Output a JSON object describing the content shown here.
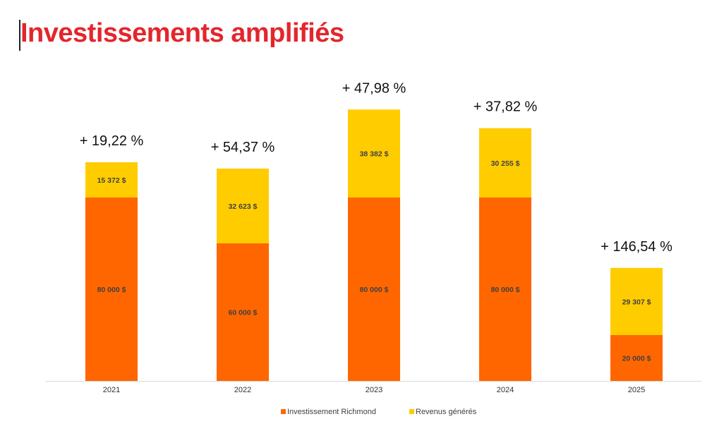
{
  "page": {
    "title": "Investissements amplifiés"
  },
  "colors": {
    "title": "#e3262d",
    "investment": "#ff6600",
    "revenue": "#ffcc00",
    "axis": "#d9d9d9"
  },
  "chart_data": {
    "type": "bar",
    "stacked": true,
    "title": "",
    "xlabel": "",
    "ylabel": "",
    "ylim": [
      0,
      120000
    ],
    "categories": [
      "2021",
      "2022",
      "2023",
      "2024",
      "2025"
    ],
    "series": [
      {
        "name": "Investissement Richmond",
        "color": "#ff6600",
        "values": [
          80000,
          60000,
          80000,
          80000,
          20000
        ],
        "labels": [
          "80 000  $",
          "60 000  $",
          "80 000  $",
          "80 000  $",
          "20 000  $"
        ]
      },
      {
        "name": "Revenus générés",
        "color": "#ffcc00",
        "values": [
          15372,
          32623,
          38382,
          30255,
          29307
        ],
        "labels": [
          "15 372  $",
          "32 623  $",
          "38 382  $",
          "30 255  $",
          "29 307  $"
        ]
      }
    ],
    "growth_labels": [
      "+ 19,22 %",
      "+ 54,37 %",
      "+ 47,98 %",
      "+ 37,82 %",
      "+ 146,54 %"
    ],
    "legend_position": "bottom"
  }
}
